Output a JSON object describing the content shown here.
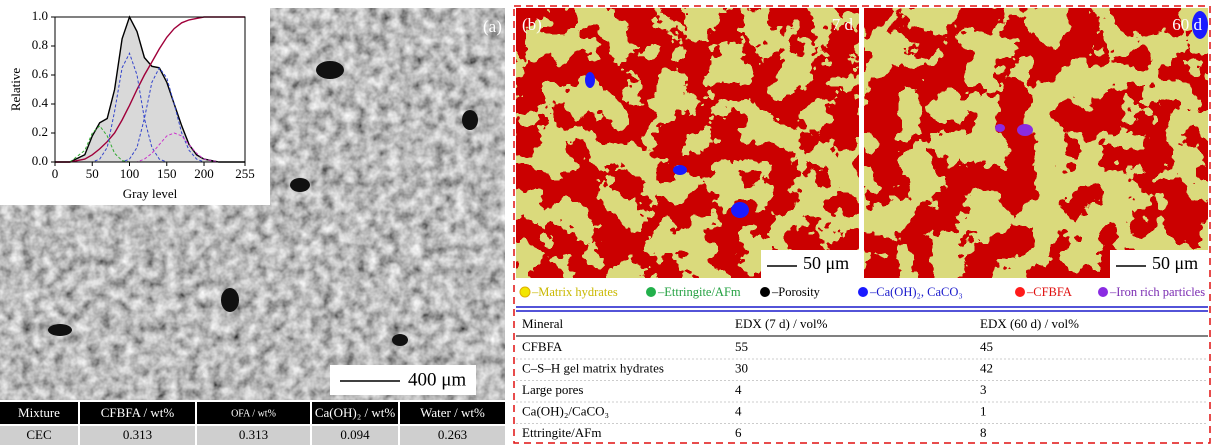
{
  "chart_data": {
    "type": "line",
    "xlabel": "Gray level",
    "ylabel": "Relative",
    "x": [
      0,
      20,
      40,
      50,
      60,
      70,
      80,
      90,
      100,
      110,
      120,
      130,
      140,
      150,
      160,
      170,
      180,
      190,
      200,
      220,
      255
    ],
    "series": [
      {
        "color": "#000000",
        "fill": "#d9d9d9",
        "dash": false,
        "values": [
          0,
          0,
          0.05,
          0.18,
          0.27,
          0.3,
          0.5,
          0.85,
          1.0,
          0.9,
          0.72,
          0.66,
          0.65,
          0.55,
          0.4,
          0.25,
          0.12,
          0.05,
          0.02,
          0,
          0
        ]
      },
      {
        "color": "#a0003a",
        "dash": false,
        "values": [
          0,
          0,
          0.02,
          0.05,
          0.09,
          0.14,
          0.2,
          0.29,
          0.39,
          0.5,
          0.6,
          0.69,
          0.78,
          0.86,
          0.92,
          0.96,
          0.98,
          0.99,
          1.0,
          1.0,
          1.0
        ]
      },
      {
        "color": "#33aa33",
        "dash": true,
        "values": [
          0,
          0,
          0.08,
          0.2,
          0.25,
          0.18,
          0.06,
          0.01,
          0,
          0,
          0,
          0,
          0,
          0,
          0,
          0,
          0,
          0,
          0,
          0,
          0
        ]
      },
      {
        "color": "#3344cc",
        "dash": true,
        "values": [
          0,
          0,
          0,
          0,
          0.02,
          0.1,
          0.35,
          0.65,
          0.75,
          0.6,
          0.3,
          0.1,
          0.02,
          0,
          0,
          0,
          0,
          0,
          0,
          0,
          0
        ]
      },
      {
        "color": "#3344cc",
        "dash": true,
        "values": [
          0,
          0,
          0,
          0,
          0,
          0,
          0,
          0,
          0.02,
          0.1,
          0.3,
          0.55,
          0.65,
          0.58,
          0.4,
          0.2,
          0.08,
          0.02,
          0,
          0,
          0
        ]
      },
      {
        "color": "#cc33cc",
        "dash": true,
        "values": [
          0,
          0,
          0,
          0,
          0,
          0,
          0,
          0,
          0,
          0,
          0.02,
          0.06,
          0.12,
          0.18,
          0.2,
          0.18,
          0.12,
          0.06,
          0.02,
          0,
          0
        ]
      }
    ],
    "xlim": [
      0,
      255
    ],
    "xticks": [
      0,
      50,
      100,
      150,
      200,
      255
    ],
    "ylim": [
      0,
      1
    ],
    "yticks": [
      {
        "value": 0,
        "label": "0.0"
      },
      0.2,
      0.4,
      0.6,
      0.8,
      {
        "value": 1,
        "label": "1.0"
      }
    ]
  },
  "panel_a": {
    "label": "(a)",
    "scale_bar": "400 μm",
    "table": {
      "header": [
        "Mixture",
        "CFBFA / wt%",
        "OFA / wt%",
        "Ca(OH)₂ / wt%",
        "Water / wt%"
      ],
      "rows": [
        [
          "CEC",
          0.313,
          0.313,
          0.094,
          0.263
        ]
      ]
    }
  },
  "panel_b": {
    "label": "(b)",
    "maps": [
      {
        "label": "7 d",
        "scale_bar": "50 μm"
      },
      {
        "label": "60 d",
        "scale_bar": "50 μm"
      }
    ],
    "legend": [
      {
        "text": "–Matrix hydrates",
        "color": "#f2e600",
        "text_color": "#c9b800"
      },
      {
        "text": "–Ettringite/AFm",
        "color": "#22b04b",
        "text_color": "#22a040"
      },
      {
        "text": "–Porosity",
        "color": "#000000",
        "text_color": "#000000"
      },
      {
        "text": "–Ca(OH)₂, CaCO₃",
        "color": "#1a1aff",
        "text_color": "#1a1acc"
      },
      {
        "text": "–CFBFA",
        "color": "#ff1a1a",
        "text_color": "#e01010"
      },
      {
        "text": "–Iron rich particles",
        "color": "#8a2be2",
        "text_color": "#7a2bb2"
      }
    ],
    "table": {
      "header": [
        "Mineral",
        "EDX (7 d) / vol%",
        "EDX (60 d) / vol%"
      ],
      "rows": [
        [
          "CFBFA",
          55,
          45
        ],
        [
          "C–S–H gel matrix hydrates",
          30,
          42
        ],
        [
          "Large pores",
          4,
          3
        ],
        [
          "Ca(OH)₂/CaCO₃",
          4,
          1
        ],
        [
          "Ettringite/AFm",
          6,
          8
        ]
      ]
    }
  }
}
